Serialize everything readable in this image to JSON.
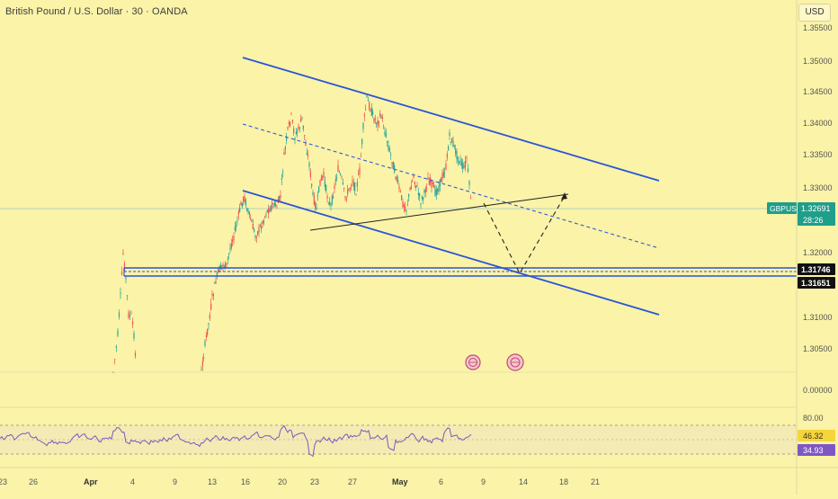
{
  "header": {
    "symbol_title": "British Pound / U.S. Dollar · 30 · OANDA",
    "currency": "USD"
  },
  "colors": {
    "background": "#faf3a8",
    "channel_line": "#2b55d6",
    "candle_up": "#26a69a",
    "candle_down": "#ef5350",
    "rsi_line": "#7e57c2",
    "price_tag": "#1f9e8a",
    "level_tag": "#111111",
    "rsi_tag": "#7e57c2",
    "rsi_tag_yellow": "#f5d53a"
  },
  "price_axis": {
    "ticks": [
      "1.35500",
      "1.35000",
      "1.34500",
      "1.34000",
      "1.33500",
      "1.33000",
      "1.32000",
      "1.31000",
      "1.30500"
    ],
    "rsi_ticks": [
      "0.00000",
      "80.00"
    ],
    "current_price": {
      "symbol": "GBPUSD",
      "price": "1.32691",
      "countdown": "28:26"
    },
    "levels": [
      "1.31746",
      "1.31651"
    ],
    "rsi_values": [
      "46.32",
      "34.93"
    ]
  },
  "time_axis": {
    "ticks": [
      "23",
      "26",
      "Apr",
      "4",
      "9",
      "13",
      "16",
      "20",
      "23",
      "27",
      "May",
      "6",
      "9",
      "14",
      "18",
      "21"
    ],
    "bold": [
      "Apr",
      "May"
    ]
  },
  "events": {
    "flag_icon": "event-flag-icon",
    "count": 2
  },
  "chart_data": {
    "type": "candlestick",
    "symbol": "GBPUSD",
    "timeframe": "30",
    "ylim": [
      1.3,
      1.356
    ],
    "last_price": 1.32691,
    "horizontal_levels": [
      1.31746,
      1.31651
    ],
    "channel": {
      "upper": [
        [
          "Apr 16",
          1.3502
        ],
        [
          "May 20",
          1.3314
        ]
      ],
      "middle": [
        [
          "Apr 16",
          1.3407
        ],
        [
          "May 20",
          1.321
        ]
      ],
      "lower": [
        [
          "Apr 16",
          1.3294
        ],
        [
          "May 20",
          1.3104
        ]
      ]
    },
    "rsi": {
      "last": 46.32,
      "signal": 34.93,
      "bands": [
        30,
        70
      ],
      "ylim": [
        0,
        100
      ]
    }
  }
}
